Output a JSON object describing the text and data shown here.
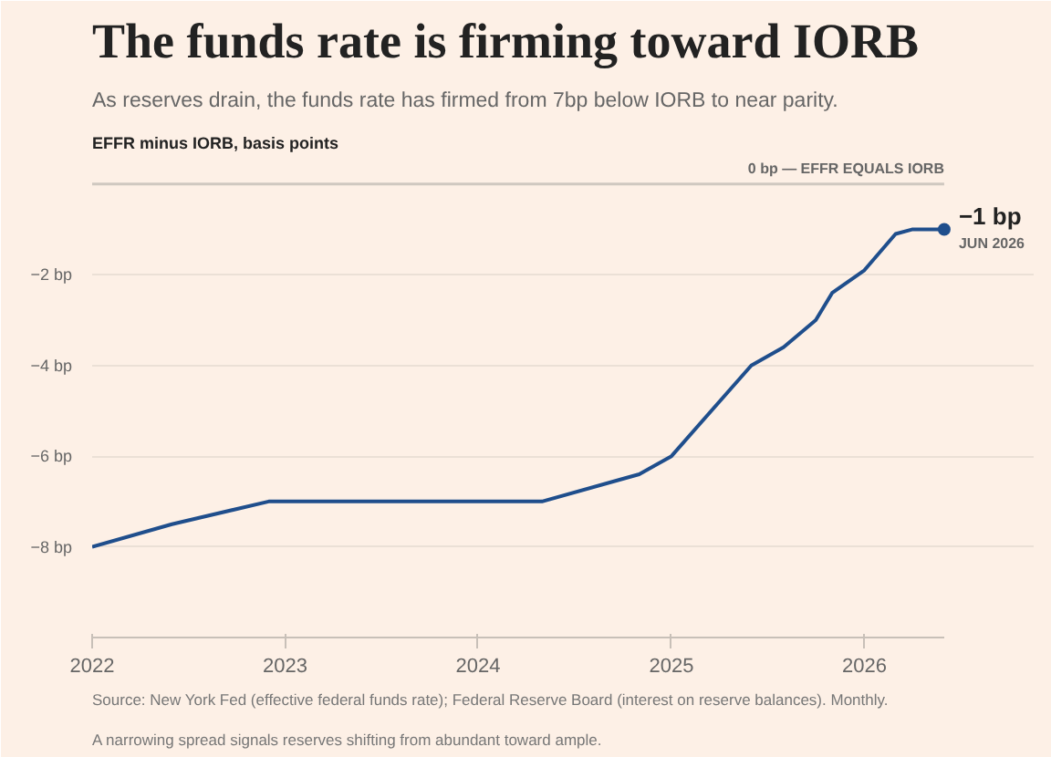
{
  "chart_data": {
    "type": "line",
    "title": "The funds rate is firming toward IORB",
    "subtitle": "As reserves drain, the funds rate has firmed from 7bp below IORB to near parity.",
    "ylabel": "EFFR minus IORB, basis points",
    "x": [
      "2022-01",
      "2022-06",
      "2022-12",
      "2024-05",
      "2024-10",
      "2024-11",
      "2025-01",
      "2025-06",
      "2025-08",
      "2025-10",
      "2025-11",
      "2026-01",
      "2026-03",
      "2026-04",
      "2026-06"
    ],
    "series": [
      {
        "color": "#1f4e8c",
        "values": [
          -8,
          -7.5,
          -7,
          -7,
          -6.5,
          -6.4,
          -6,
          -4,
          -3.6,
          -3,
          -2.4,
          -1.9,
          -1.1,
          -1,
          -1
        ]
      }
    ],
    "xlim": [
      "2022-01",
      "2026-06"
    ],
    "xticks": [
      {
        "value": "2022-01",
        "label": "2022"
      },
      {
        "value": "2023-01",
        "label": "2023"
      },
      {
        "value": "2024-01",
        "label": "2024"
      },
      {
        "value": "2025-01",
        "label": "2025"
      },
      {
        "value": "2026-01",
        "label": "2026"
      }
    ],
    "ylim": [
      -10,
      0
    ],
    "yticks": [
      {
        "value": -8,
        "label": "−8 bp"
      },
      {
        "value": -6,
        "label": "−6 bp"
      },
      {
        "value": -4,
        "label": "−4 bp"
      },
      {
        "value": -2,
        "label": "−2 bp"
      }
    ],
    "grid": "y",
    "marker": "none",
    "line_style": "solid",
    "ref_lines": [
      {
        "axis": "y",
        "value": 0,
        "label": "0 bp — EFFR EQUALS IORB",
        "color": "#cfc8c0"
      }
    ],
    "annotations": [
      {
        "text": "−1 bp",
        "x": "2026-06",
        "y": -1
      },
      {
        "text": "JUN 2026",
        "x": "2026-06",
        "y": -1
      },
      "Source: New York Fed (effective federal funds rate); Federal Reserve Board (interest on reserve balances). Monthly.",
      "A narrowing spread signals reserves shifting from abundant toward ample."
    ]
  }
}
